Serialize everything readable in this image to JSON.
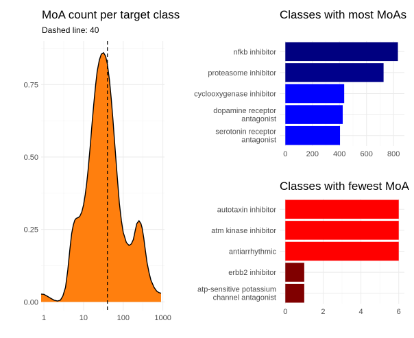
{
  "chart_data": [
    {
      "type": "area",
      "title": "MoA count per target class",
      "subtitle": "Dashed line: 40",
      "xlabel": "",
      "ylabel": "",
      "x_scale": "log10",
      "x_tick_labels": [
        "1",
        "10",
        "100",
        "1000"
      ],
      "x_ticks": [
        1,
        10,
        100,
        1000
      ],
      "y_tick_labels": [
        "0.00",
        "0.25",
        "0.50",
        "0.75"
      ],
      "y_ticks": [
        0,
        0.25,
        0.5,
        0.75
      ],
      "xlim": [
        0.85,
        1100
      ],
      "ylim": [
        -0.03,
        0.9
      ],
      "vline": 40,
      "fill_color": "#FF7F0E",
      "grid": true,
      "density": {
        "x": [
          0.85,
          1.0,
          1.2,
          1.5,
          1.8,
          2.2,
          2.6,
          3.0,
          3.5,
          4.0,
          4.5,
          5.0,
          5.5,
          6.0,
          6.5,
          7.0,
          7.5,
          8.0,
          9.0,
          10,
          11,
          12,
          13,
          14,
          15,
          16,
          18,
          20,
          22,
          25,
          28,
          32,
          36,
          40,
          45,
          50,
          55,
          60,
          70,
          80,
          90,
          100,
          120,
          140,
          160,
          180,
          200,
          220,
          250,
          280,
          300,
          330,
          360,
          400,
          450,
          500,
          600,
          700,
          800,
          900
        ],
        "y": [
          0.027,
          0.026,
          0.02,
          0.012,
          0.006,
          0.003,
          0.006,
          0.02,
          0.05,
          0.11,
          0.18,
          0.235,
          0.265,
          0.282,
          0.288,
          0.29,
          0.292,
          0.295,
          0.31,
          0.335,
          0.37,
          0.41,
          0.455,
          0.505,
          0.55,
          0.6,
          0.68,
          0.745,
          0.795,
          0.835,
          0.855,
          0.86,
          0.848,
          0.82,
          0.765,
          0.7,
          0.63,
          0.56,
          0.44,
          0.34,
          0.28,
          0.24,
          0.205,
          0.195,
          0.2,
          0.215,
          0.245,
          0.27,
          0.28,
          0.27,
          0.255,
          0.22,
          0.18,
          0.135,
          0.1,
          0.075,
          0.05,
          0.037,
          0.032,
          0.03
        ]
      }
    },
    {
      "type": "bar",
      "orientation": "horizontal",
      "title": "Classes with most MoAs",
      "categories": [
        "nfkb inhibitor",
        "proteasome inhibitor",
        "cyclooxygenase inhibitor",
        "dopamine receptor antagonist",
        "serotonin receptor antagonist"
      ],
      "category_labels": [
        [
          "nfkb inhibitor"
        ],
        [
          "proteasome inhibitor"
        ],
        [
          "cyclooxygenase inhibitor"
        ],
        [
          "dopamine receptor",
          "antagonist"
        ],
        [
          "serotonin receptor",
          "antagonist"
        ]
      ],
      "values": [
        832,
        726,
        435,
        424,
        404
      ],
      "colors": [
        "#000080",
        "#00008B",
        "#0000FF",
        "#0000FF",
        "#0000FF"
      ],
      "xlim": [
        -42,
        880
      ],
      "x_ticks": [
        0,
        200,
        400,
        600,
        800
      ],
      "x_tick_labels": [
        "0",
        "200",
        "400",
        "600",
        "800"
      ],
      "xlabel": "",
      "ylabel": "",
      "grid": true
    },
    {
      "type": "bar",
      "orientation": "horizontal",
      "title": "Classes with fewest MoA",
      "categories": [
        "autotaxin inhibitor",
        "atm kinase inhibitor",
        "antiarrhythmic",
        "erbb2 inhibitor",
        "atp-sensitive potassium channel antagonist"
      ],
      "category_labels": [
        [
          "autotaxin inhibitor"
        ],
        [
          "atm kinase inhibitor"
        ],
        [
          "antiarrhythmic"
        ],
        [
          "erbb2 inhibitor"
        ],
        [
          "atp-sensitive potassium",
          "channel antagonist"
        ]
      ],
      "values": [
        6,
        6,
        6,
        1,
        1
      ],
      "colors": [
        "#FF0000",
        "#FF0000",
        "#FF0000",
        "#800000",
        "#800000"
      ],
      "xlim": [
        -0.3,
        6.3
      ],
      "x_ticks": [
        0,
        2,
        4,
        6
      ],
      "x_tick_labels": [
        "0",
        "2",
        "4",
        "6"
      ],
      "xlabel": "",
      "ylabel": "",
      "grid": true
    }
  ]
}
